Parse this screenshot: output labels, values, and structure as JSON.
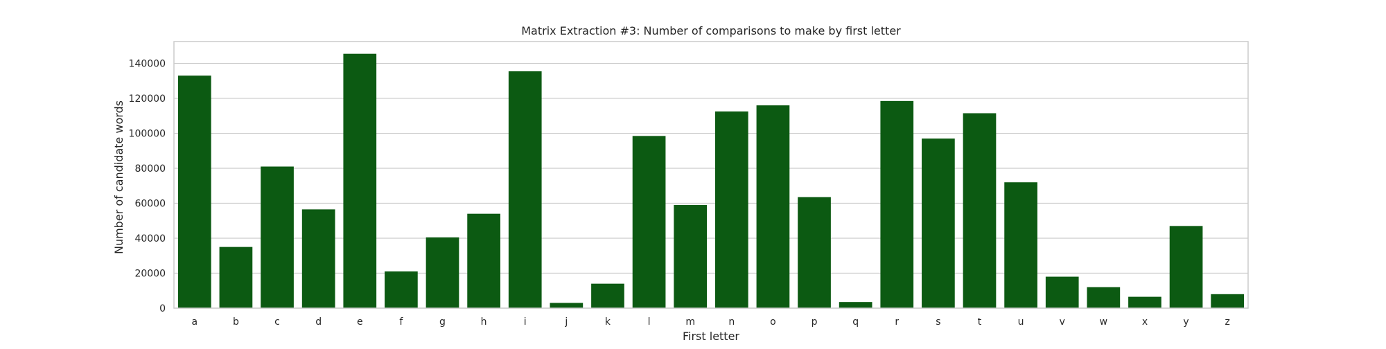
{
  "chart_data": {
    "type": "bar",
    "title": "Matrix Extraction #3: Number of comparisons to make by first letter",
    "xlabel": "First letter",
    "ylabel": "Number of candidate words",
    "categories": [
      "a",
      "b",
      "c",
      "d",
      "e",
      "f",
      "g",
      "h",
      "i",
      "j",
      "k",
      "l",
      "m",
      "n",
      "o",
      "p",
      "q",
      "r",
      "s",
      "t",
      "u",
      "v",
      "w",
      "x",
      "y",
      "z"
    ],
    "values": [
      133000,
      35000,
      81000,
      56500,
      145500,
      21000,
      40500,
      54000,
      135500,
      3000,
      14000,
      98500,
      59000,
      112500,
      116000,
      63500,
      3500,
      118500,
      97000,
      111500,
      72000,
      18000,
      12000,
      6500,
      47000,
      8000
    ],
    "ylim": [
      0,
      152500
    ],
    "yticks": [
      0,
      20000,
      40000,
      60000,
      80000,
      100000,
      120000,
      140000
    ],
    "ytick_labels": [
      "0",
      "20000",
      "40000",
      "60000",
      "80000",
      "100000",
      "120000",
      "140000"
    ],
    "grid": true,
    "bar_color": "#0c5a12",
    "grid_color": "#cccccc",
    "frame_color": "#cccccc"
  }
}
